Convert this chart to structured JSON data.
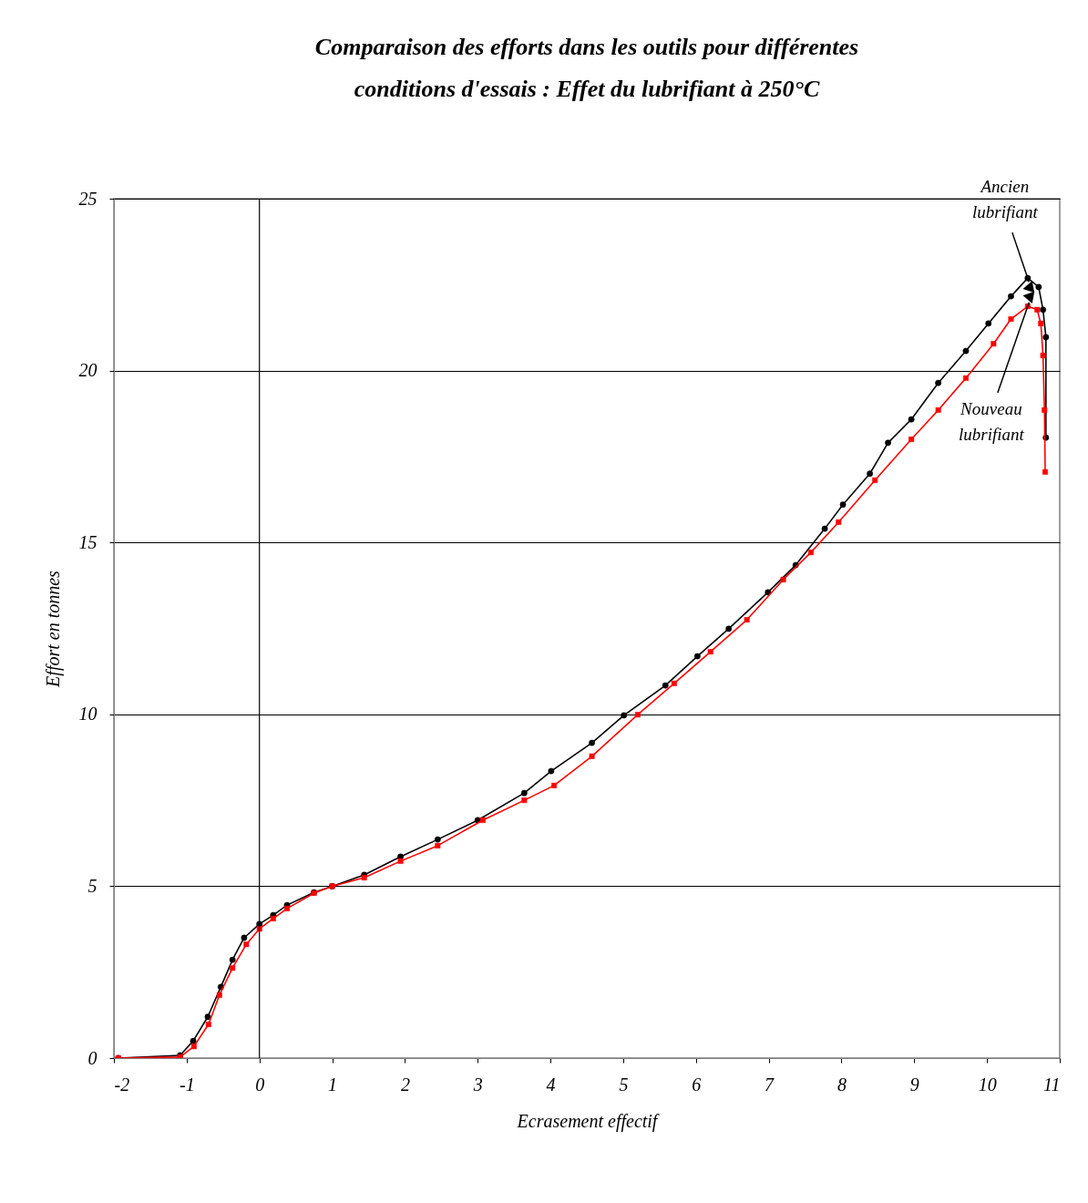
{
  "chart_data": {
    "type": "line",
    "title": "Comparaison des efforts dans les outils pour différentes conditions d'essais : Effet du lubrifiant à 250°C",
    "xlabel": "Ecrasement effectif",
    "ylabel": "Effort en tonnes",
    "xlim": [
      -2,
      11
    ],
    "xticks": [
      -2,
      -1,
      0,
      1,
      2,
      3,
      4,
      5,
      6,
      7,
      8,
      9,
      10,
      11
    ],
    "ylim": [
      0,
      25
    ],
    "yticks": [
      0,
      5,
      10,
      15,
      20,
      25
    ],
    "grid": "y",
    "ref_lines": [
      {
        "axis": "x",
        "value": 0,
        "color": "#000000"
      }
    ],
    "series": [
      {
        "name": "Ancien lubrifiant",
        "color": "#000000",
        "marker": "circle",
        "x": [
          -1.94,
          -1.09,
          -0.91,
          -0.71,
          -0.53,
          -0.37,
          -0.21,
          0,
          0.19,
          0.38,
          0.75,
          1.0,
          1.44,
          1.94,
          2.45,
          3.0,
          3.64,
          4.01,
          4.57,
          5.01,
          5.58,
          6.02,
          6.45,
          6.99,
          7.37,
          7.77,
          8.02,
          8.39,
          8.64,
          8.96,
          9.33,
          9.71,
          10.02,
          10.33,
          10.56,
          10.71,
          10.77,
          10.81,
          10.81
        ],
        "values": [
          0,
          0.08,
          0.5,
          1.2,
          2.07,
          2.86,
          3.5,
          3.9,
          4.16,
          4.45,
          4.82,
          5.0,
          5.33,
          5.86,
          6.36,
          6.92,
          7.71,
          8.35,
          9.17,
          9.97,
          10.84,
          11.69,
          12.49,
          13.55,
          14.34,
          15.4,
          16.1,
          17.0,
          17.9,
          18.58,
          19.64,
          20.57,
          21.37,
          22.16,
          22.69,
          22.43,
          21.77,
          20.97,
          18.05
        ]
      },
      {
        "name": "Nouveau lubrifiant",
        "color": "#ff0000",
        "marker": "square",
        "x": [
          -1.94,
          -1.09,
          -0.9,
          -0.7,
          -0.55,
          -0.37,
          -0.18,
          0,
          0.19,
          0.38,
          0.75,
          1.0,
          1.44,
          1.94,
          2.45,
          3.07,
          3.64,
          4.05,
          4.57,
          5.2,
          5.7,
          6.2,
          6.7,
          7.2,
          7.58,
          7.96,
          8.46,
          8.96,
          9.33,
          9.71,
          10.09,
          10.33,
          10.56,
          10.69,
          10.74,
          10.77,
          10.79,
          10.8
        ],
        "values": [
          0,
          0.03,
          0.34,
          0.98,
          1.83,
          2.62,
          3.31,
          3.76,
          4.06,
          4.35,
          4.8,
          5.0,
          5.25,
          5.73,
          6.18,
          6.92,
          7.5,
          7.93,
          8.78,
          9.99,
          10.9,
          11.82,
          12.75,
          13.92,
          14.71,
          15.59,
          16.81,
          18.0,
          18.85,
          19.78,
          20.78,
          21.5,
          21.87,
          21.77,
          21.37,
          20.44,
          18.85,
          17.05
        ]
      }
    ]
  }
}
